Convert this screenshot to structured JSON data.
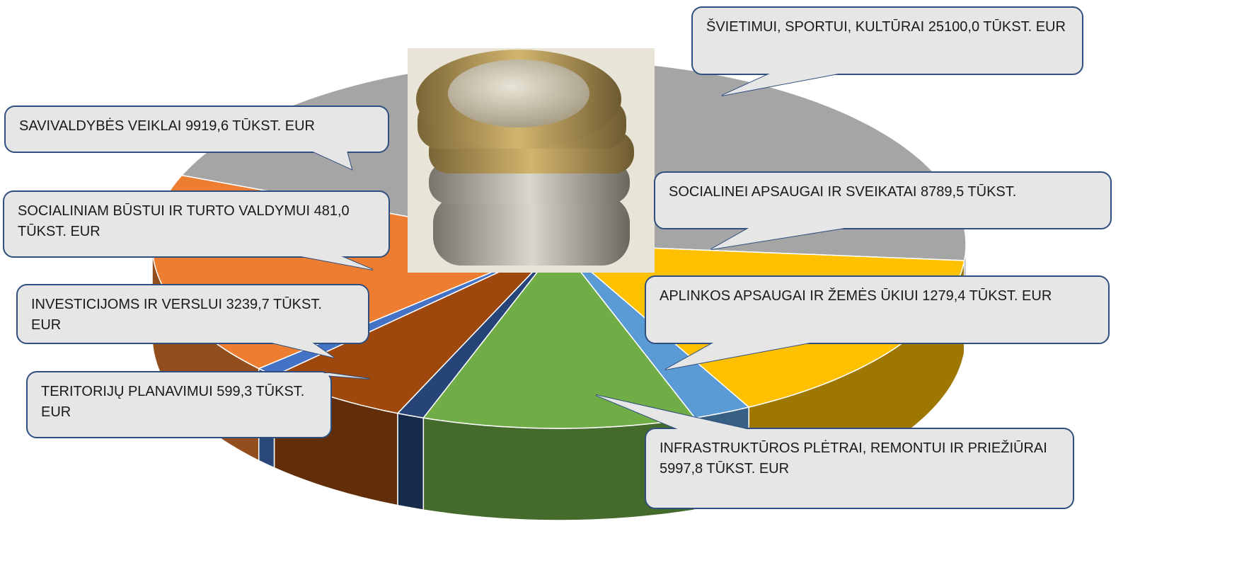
{
  "chart_data": {
    "type": "pie",
    "categories": [
      "ŠVIETIMUI, SPORTUI, KULTŪRAI",
      "SOCIALINEI APSAUGAI IR SVEIKATAI",
      "APLINKOS APSAUGAI IR ŽEMĖS ŪKIUI",
      "INFRASTRUKTŪROS PLĖTRAI, REMONTUI IR PRIEŽIŪRAI",
      "TERITORIJŲ PLANAVIMUI",
      "INVESTICIJOMS IR VERSLUI",
      "SOCIALINIAM BŪSTUI IR TURTO VALDYMUI",
      "SAVIVALDYBĖS VEIKLAI"
    ],
    "values": [
      25100.0,
      8789.5,
      1279.4,
      5997.8,
      599.3,
      3239.7,
      481.0,
      9919.6
    ],
    "value_labels": [
      "25100,0 TŪKST. EUR",
      "8789,5 TŪKST.",
      "1279,4 TŪKST. EUR",
      "5997,8 TŪKST. EUR",
      "599,3 TŪKST. EUR",
      "3239,7 TŪKST. EUR",
      "481,0 TŪKST. EUR",
      "9919,6 TŪKST. EUR"
    ],
    "colors": [
      "#a5a5a5",
      "#ffc000",
      "#5b9bd5",
      "#70ad47",
      "#264478",
      "#9e480e",
      "#4472c4",
      "#ed7d31"
    ]
  }
}
